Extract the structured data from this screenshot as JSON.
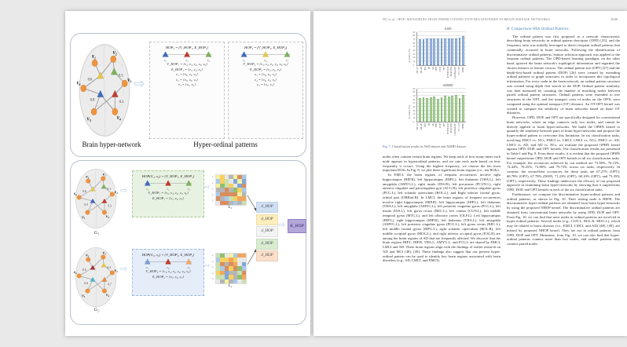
{
  "icons": {
    "arrow_right": "⇨"
  },
  "left_page": {
    "panel1": {
      "brain_label": "Brain hyper-network",
      "patterns_label": "Hyper-ordinal patterns",
      "hop1": {
        "title": "HOP₁ = (V_HOP₁, E_HOP₁)",
        "motif": {
          "colors": [
            "#3f6bbf",
            "#c03b2e",
            "#7cb35a"
          ],
          "labels": [
            "e₁",
            "e₂",
            "e₃"
          ]
        },
        "lines": [
          "V_HOP₁ = {v₂, v₃, v₄, v₅, v₆}",
          "E_HOP₁ = {e₁, e₂, e₃}",
          "e₁ = {v₆, v₅, v₄}",
          "e₂ = {v₅, v₆, v₃}",
          "e₃ = {v₂, v₃}"
        ]
      },
      "hop2": {
        "title": "HOP₂ = (V_HOP₂, E_HOP₂)",
        "motif": {
          "colors": [
            "#3f6bbf",
            "#e8c84a",
            "#7cb35a"
          ],
          "labels": [
            "e₁",
            "e₄",
            "e₃"
          ]
        },
        "lines": [
          "V_HOP₂ = {v₁, v₂, v₃, v₄, v₅, v₆}",
          "E_HOP₂ = {e₁, e₄, e₃}",
          "e₁ = {v₆, v₅, v₄}",
          "e₄ = {v₆, v₁, v₂}",
          "e₃ = {v₂, v₃}"
        ]
      }
    },
    "panel2": {
      "g1_label": "G₁",
      "g2_label": "G₂",
      "green_box": {
        "title": "HOP(G₁, v₆) = (V_HOP₁, E_HOP₁)",
        "motif": {
          "colors": [
            "#3f6bbf",
            "#c03b2e",
            "#7cb35a"
          ],
          "labels": [
            "e₁",
            "e₂",
            "e₃"
          ]
        },
        "lines": [
          "V_HOP₁ = {v₂, v₃, v₄, v₅, v₆}",
          "E_HOP₁ = {e₁, e₂, e₃}"
        ]
      },
      "blue_box": {
        "title": "HOP(G₂, v₆) = (V_HOP₂, E_HOP₂)",
        "motif": {
          "colors": [
            "#7a9fd4",
            "#c03b2e",
            "#f0a860"
          ],
          "labels": [
            "e₁",
            "e₄",
            "e₃"
          ]
        },
        "lines": [
          "V_HOP₂ = {v₁, v₂, v₃, v₄, v₅, v₆}",
          "E_HOP₂ = {e₁, e₄, e₃}"
        ]
      },
      "l1_label": "L₁",
      "l2_label": "L₂",
      "matrix_row_labels": [
        "v₂",
        "v₃",
        "v₄",
        "v₅",
        "v₆"
      ],
      "matrix_palette": [
        "#8fbf6f",
        "#c8e0b0",
        "#f2a65e",
        "#f7d060",
        "#7fa8d9",
        "#b5b5b5",
        "#e8e8e8",
        "#d98d5f",
        "#a9c9e8",
        "#f4f0a0"
      ],
      "dhop": [
        {
          "label": "d_HOP",
          "color": "#cfe0f4"
        },
        {
          "label": "d_HOP",
          "color": "#fdeebc"
        },
        {
          "label": "d_HOP",
          "color": "#f3f3f3"
        },
        {
          "label": "d_HOP",
          "color": "#d9ecd0"
        },
        {
          "label": "d_HOP",
          "color": "#fbdfc9"
        }
      ],
      "k_label": "K_HOP"
    },
    "brains": {
      "top": {
        "node_labels": [
          "v₁",
          "v₂",
          "v₃",
          "v₄",
          "v₅",
          "v₆"
        ],
        "weights": [
          "0.6",
          "0.3",
          "0.8",
          "0.5"
        ],
        "tri_colors": [
          "#e8c84a",
          "#7cb35a",
          "#3f6bbf",
          "#c03b2e"
        ]
      },
      "g1": {
        "node_labels": [
          "v₁",
          "v₂",
          "v₃",
          "v₄",
          "v₅",
          "v₆"
        ],
        "weights": [
          "0.6",
          "0.1",
          "0.5",
          "0.3"
        ],
        "tri_colors": [
          "#e8c84a",
          "#7cb35a",
          "#3f6bbf",
          "#c03b2e"
        ]
      },
      "g2": {
        "node_labels": [
          "v₁",
          "v₂",
          "v₃",
          "v₄",
          "v₅",
          "v₆"
        ],
        "weights": [
          "0.5",
          "0.2",
          "0.6",
          "0.7"
        ],
        "tri_colors": [
          "#a33226",
          "#e8c84a",
          "#45b8d1",
          "#e8883a"
        ]
      }
    }
  },
  "right_page": {
    "header": {
      "running_head": "DU et al.: HOP: MEASURING HIGH ORDER CONNECTION RELATIONSHIP IN BRAIN DISEASE NETWORKS",
      "page_number": "3040"
    },
    "figure_caption": {
      "prefix": "Fig. 7.",
      "text": "Classification results in ASD dataset and ADHD dataset."
    },
    "left_column_paragraphs": [
      "nodes often contain certain brain regions. We keep track of how many times each node appears in hyperordinal patterns, and we rate each node based on how frequently it occurs. Using the highest frequency, we choose the ten most important ROIs. In Fig. 8, we plot these significant brain regions (i.e., ten ROIs).",
      "In EMCI, the brain regions of frequent occurrences involve right hippocampus (HIP.R), left hippocampus (HIP.L), left thalamus (THA.L), left amygdala (AMYG.L), right insula (INS.R), left precuneus (PCUN.L), right anterior cingulate and paracingulate gyri (ACG.R), left posterior cingulate gyrus (PCG.L), left rolandic operculum (ROL.L), and Right inferior frontal gyrus, orbital part (ORBinf.R). In LMCI, the brain regions of frequent occurrences involve right hippocampus (HIP.R), left hippocampus (HIP.L), left thalamus (THA.L), left amygdala (AMYG.L), left posterior cingulate gyrus (PCG.L), left insula (INS.L), left gyrus rectus (REC.L), left cuneus (CUN.L), left middle temporal gyrus (MTG.L), and left olfactory cortex (OLF.L). Left hippocampus (HIP.L), right hippocampus (HIP.R), left thalamus (THA.L), left amygdala (AMYG.L), left posterior cingulate gyrus (PCG.L), left gyrus rectus (REC.L), left middle frontal gyrus (MFG.L), right rolandic operculum (ROL.R), left middle occipital gyrus (MOG.L), and right inferior occipital gyrus (IOG.R) are among the brain regions of AD that are frequently affected. We discover that the brain regions HIP.L, HIP.R, THA.L, AMYG.L, and PCG.L are shared by EMCI, LMCI and AD. These brain regions align with the findings of earlier research on AD and MCI [48], [49]. These findings also suggest that our present hyper-ordinal pattern can be used to identify key brain regions associated with brain disorders (e.g., AD, LMCI, and EMCI)."
    ],
    "right_column": {
      "heading": "B. Comparison With Ordinal Patterns",
      "paragraphs": [
        "The ordinal pattern was first proposed as a network characteristic describing brain networks in ordinal pattern descriptor (OPD) [25], and the frequency ratio was initially leveraged to detect frequent ordinal patterns that continually occurred in brain networks. Following the identification of discriminative ordinal patterns, feature selection approach was applied to the frequent ordinal patterns. The OPD-based learning paradigm, on the other hand, ignored the brain network's topological information and regarded the chosen features as feature vectors. The ordinal pattern tree (OPT) [27] and the depth-first-based ordinal pattern (DOP) [26] were created by extending ordinal patterns to graph structures in order to incorporate this topological information. For every node in the brain network, an ordinal pattern structure was created using depth first search in the DOP. Ordinal pattern similarity was then measured by counting the number of matching nodes between paired ordinal pattern structures. Ordinal patterns were extended to tree structures in the OPT, and the transport costs of nodes on the OPTs were computed using the optimal transport (OT) distance. An OT-OPT kernel was created to compare the similarity of brain networks based on these OT distances.",
        "However, OPD, DOP, and OPT are specifically designed for conventional brain networks, where an edge connects only two nodes, and cannot be directly applied to brain hyper-networks. We build the OPHN kernel to quantify the similarity between pairs of brain hyper-networks and propose the hyper-ordinal pattern to overcome this limitation. In six classification tasks, involving EMCI vs. NCs, EMCI vs. LMCI, LMCI vs. NCs, EMCI vs. AD, LMCI vs. AD, and AD vs. NCs, we evaluate the proposed OPHN kernel against OPD, DOP, and OPT kernels. The classification results are presented in Table I and Fig. 9. From these results, it is evident that the proposed OPHN kernel outperforms OPD, DOP, and OPT kernels in all six classification tasks. For example, the accuracies achieved by our method are 73.38%, 70.15%, 74.44%, 76.25%, 72.86%, and 79.73% across six tasks, respectively. In contrast, the second-best accuracies for these tasks are 67.27% (OPT), 68.79% (OPT), 67.78% (DOP), 71.23% (OPT), 68.10% (OPT), and 73.35% (OPT), respectively. These findings underscore the efficacy of our proposed approach in examining brain hyper-networks by showing that it outperforms OPD, DOP, and OPT kernels in each of the six classification tasks.",
        "Furthermore, we compare the discriminative hyper-ordinal patterns and ordinal patterns, as shown in Fig. 10. Their staring node is HIP.R. The discriminative hyper-ordinal patterns are obtained from brain hyper-networks by using the proposed NHOP kernel. The discriminative ordinal patterns are obtained from conventional brain networks by using OPD, DOP and OPT. From Fig. 10, we can find that most nodes in ordinal patterns are involved in hyper-ordinal patterns. Several nodes (e.g., CUN.L, ROL.R, MOG.L), which may be related to brain diseases (i.e., EMCI, LMCI, and AD) [48], [49], are missed by proposed NHOP kernel. They are not in ordinal patterns from OPD, DOP and OPT. Meantime, from Fig. 10, we can also find that hyper-ordinal patterns connect more than two nodes, and ordinal patterns only connect paired nodes."
      ]
    }
  },
  "chart_data": [
    {
      "type": "bar",
      "title": "ASD",
      "ylabel": "Accuracy (%)",
      "xlabel": "",
      "ylim": [
        0,
        90
      ],
      "yticks": [
        0,
        10,
        20,
        30,
        40,
        50,
        60,
        70,
        80,
        90
      ],
      "grid": true,
      "bar_color": "#aec6e8",
      "bar_border": "#7a9cc6",
      "categories": [
        "WL-ST",
        "WL-SP",
        "RW",
        "SP",
        "GK",
        "OPD",
        "DOP",
        "OPT",
        "DTF-BOLD",
        "BrainGNN",
        "Com-BrainTF",
        "FC-OAT",
        "OPHN"
      ],
      "values": [
        70,
        71,
        72.5,
        72.5,
        72,
        72.5,
        73,
        73,
        73.5,
        73.5,
        73,
        74,
        79.5
      ]
    },
    {
      "type": "bar",
      "title": "ADHD",
      "ylabel": "Accuracy (%)",
      "xlabel": "",
      "ylim": [
        0,
        90
      ],
      "yticks": [
        0,
        10,
        20,
        30,
        40,
        50,
        60,
        70,
        80,
        90
      ],
      "grid": true,
      "bar_color": "#b8d9a9",
      "bar_border": "#8cba7a",
      "categories": [
        "WL-ST",
        "WL-SP",
        "RW",
        "SP",
        "GK",
        "OPD",
        "DOP",
        "OPT",
        "DTF-BOLD",
        "BrainGNN",
        "Com-BrainTF",
        "FC-OAT",
        "OPHN"
      ],
      "values": [
        65,
        67,
        64.5,
        66,
        68,
        62.5,
        66.5,
        70,
        69,
        71,
        72,
        64.5,
        73.5
      ]
    }
  ]
}
